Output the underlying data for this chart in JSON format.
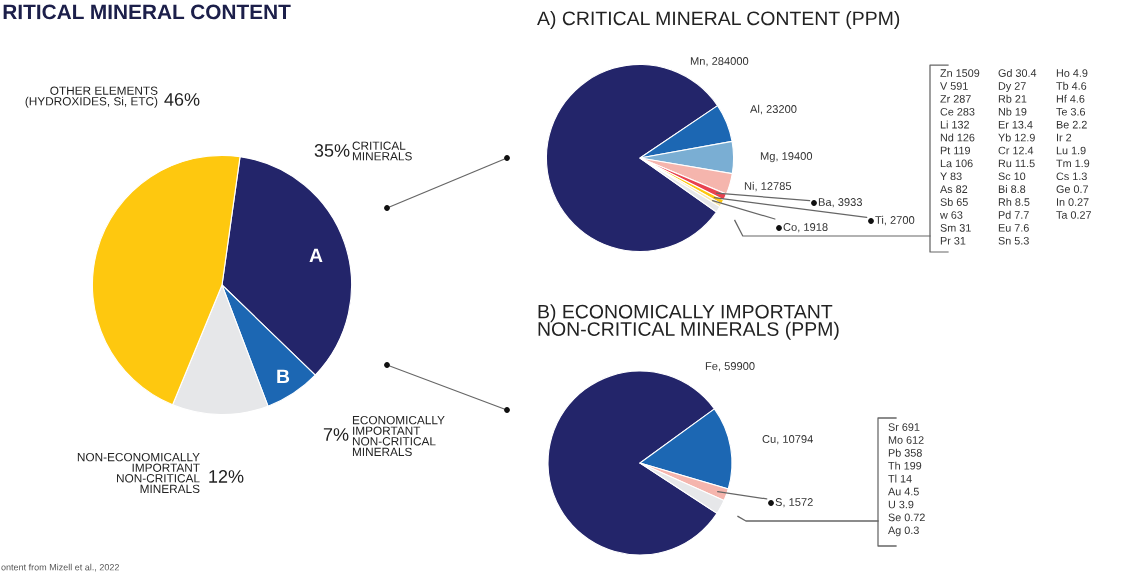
{
  "chart_data": [
    {
      "type": "pie",
      "title": "RITICAL MINERAL CONTENT",
      "categories": [
        "CRITICAL\nMINERALS",
        "ECONOMICALLY\nIMPORTANT\nNON-CRITICAL\nMINERALS",
        "NON-ECONOMICALLY\nIMPORTANT\nNON-CRITICAL\nMINERALS",
        "OTHER ELEMENTS\n(HYDROXIDES, Si, ETC)"
      ],
      "values": [
        35,
        7,
        12,
        46
      ],
      "value_labels": [
        "35%",
        "7%",
        "12%",
        "46%"
      ],
      "colors": [
        "#23256a",
        "#1c67b3",
        "#e6e7e9",
        "#fec80f"
      ],
      "annotations": [
        "A",
        "B",
        "ontent from Mizell et al., 2022"
      ]
    },
    {
      "type": "pie",
      "title": "A) CRITICAL MINERAL CONTENT (PPM)",
      "categories": [
        "Mn",
        "Al",
        "Mg",
        "Ni",
        "Ba",
        "Ti",
        "Co",
        null
      ],
      "values": [
        284000,
        23200,
        19400,
        12785,
        3933,
        2700,
        1918,
        3732
      ],
      "value_labels": [
        "284000",
        "23200",
        "19400",
        "12785",
        "3933",
        "2700",
        "1918",
        null
      ],
      "colors": [
        "#23256a",
        "#1c67b3",
        "#7aaed3",
        "#f5b5ad",
        "#e8424f",
        "#fec80f",
        "#fbe7a4",
        "#e6e7e9"
      ],
      "annotations": [
        "Zn 1509",
        "V 591",
        "Zr 287",
        "Ce 283",
        "Li 132",
        "Nd 126",
        "Pt 119",
        "La 106",
        "Y 83",
        "As 82",
        "Sb 65",
        "w 63",
        "Sm 31",
        "Pr 31",
        "Gd 30.4",
        "Dy 27",
        "Rb 21",
        "Nb 19",
        "Er 13.4",
        "Yb 12.9",
        "Cr 12.4",
        "Ru 11.5",
        "Sc 10",
        "Bi 8.8",
        "Rh 8.5",
        "Pd 7.7",
        "Eu 7.6",
        "Sn 5.3",
        "Ho 4.9",
        "Tb 4.6",
        "Hf 4.6",
        "Te 3.6",
        "Be 2.2",
        "Ir 2",
        "Lu 1.9",
        "Tm 1.9",
        "Cs 1.3",
        "Ge 0.7",
        "In 0.27",
        "Ta 0.27"
      ]
    },
    {
      "type": "pie",
      "title": "B) ECONOMICALLY IMPORTANT\nNON-CRITICAL MINERALS (PPM)",
      "categories": [
        "Fe",
        "Cu",
        "S",
        null
      ],
      "values": [
        59900,
        10794,
        1572,
        1883
      ],
      "value_labels": [
        "59900",
        "10794",
        "1572",
        null
      ],
      "colors": [
        "#23256a",
        "#1c67b3",
        "#f5b5ad",
        "#e6e7e9"
      ],
      "annotations": [
        "Sr 691",
        "Mo 612",
        "Pb 358",
        "Th 199",
        "Tl 14",
        "Au 4.5",
        "U 3.9",
        "Se 0.72",
        "Ag 0.3"
      ]
    }
  ]
}
